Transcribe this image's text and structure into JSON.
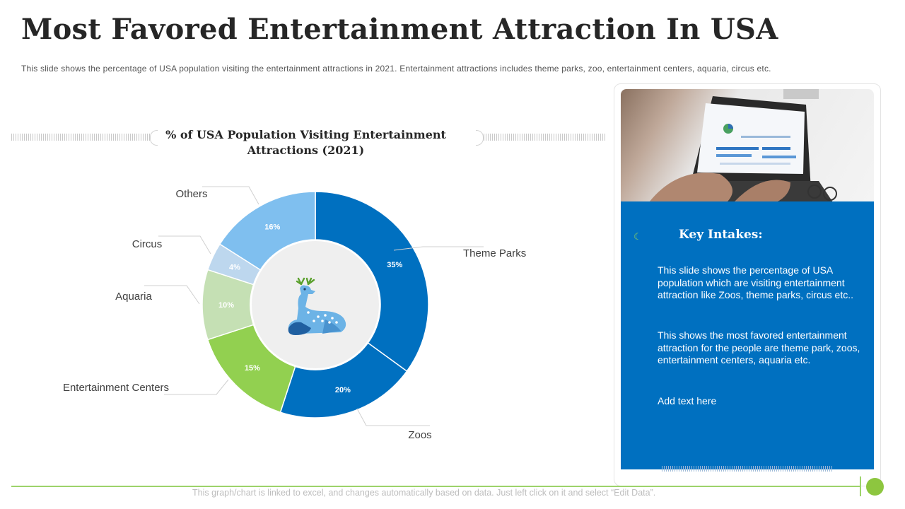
{
  "slide": {
    "title": "Most Favored Entertainment Attraction In USA",
    "subtitle": "This slide shows the percentage of USA population visiting the entertainment attractions in 2021. Entertainment attractions includes theme parks, zoo, entertainment centers, aquaria, circus etc.",
    "footnote": "This graph/chart is linked to excel,  and changes automatically based on data. Just left click on it and select “Edit Data”."
  },
  "chart_data": {
    "type": "pie",
    "variant": "donut",
    "title": "% of USA Population Visiting Entertainment Attractions (2021)",
    "categories": [
      "Theme Parks",
      "Zoos",
      "Entertainment Centers",
      "Aquaria",
      "Circus",
      "Others"
    ],
    "values": [
      35,
      20,
      15,
      10,
      4,
      16
    ],
    "labels": [
      "35%",
      "20%",
      "15%",
      "10%",
      "4%",
      "16%"
    ],
    "colors": [
      "#0070c0",
      "#0070c0",
      "#92d050",
      "#c5e0b4",
      "#bdd7ee",
      "#7fbfef"
    ],
    "center_color": "#efefef"
  },
  "panel": {
    "heading": "Key Intakes:",
    "bullets": [
      "This slide shows the percentage of USA population which are visiting entertainment attraction like Zoos, theme parks, circus etc..",
      "This shows the most favored entertainment attraction for the people are theme park, zoos, entertainment centers, aquaria etc.",
      "Add text here"
    ],
    "bullet_icon": "moon-icon",
    "box_color": "#0070c0"
  },
  "icons": {
    "center": "deer-icon",
    "photo": "laptop-photo"
  },
  "accent_colors": {
    "footer_green": "#8dc63f"
  }
}
